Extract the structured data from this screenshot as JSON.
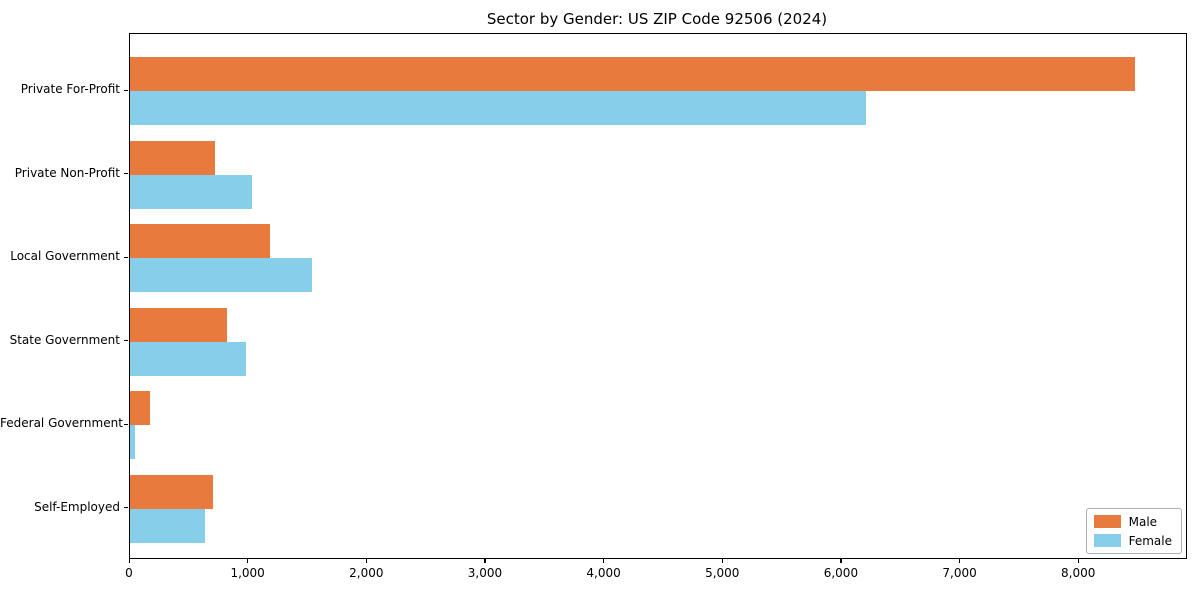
{
  "chart_data": {
    "type": "bar",
    "orientation": "horizontal",
    "title": "Sector by Gender: US ZIP Code 92506 (2024)",
    "xlabel": "",
    "ylabel": "",
    "categories": [
      "Private For-Profit",
      "Private Non-Profit",
      "Local Government",
      "State Government",
      "Federal Government",
      "Self-Employed"
    ],
    "series": [
      {
        "name": "Male",
        "color": "#e87a3e",
        "values": [
          8470,
          720,
          1180,
          820,
          170,
          700
        ]
      },
      {
        "name": "Female",
        "color": "#87ceeb",
        "values": [
          6200,
          1030,
          1530,
          980,
          40,
          630
        ]
      }
    ],
    "xlim": [
      0,
      8900
    ],
    "xticks": [
      0,
      1000,
      2000,
      3000,
      4000,
      5000,
      6000,
      7000,
      8000
    ],
    "xtick_labels": [
      "0",
      "1,000",
      "2,000",
      "3,000",
      "4,000",
      "5,000",
      "6,000",
      "7,000",
      "8,000"
    ],
    "grid": false,
    "legend": {
      "position": "lower right"
    }
  }
}
